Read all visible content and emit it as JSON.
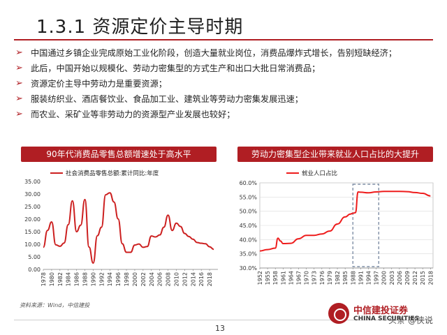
{
  "page": {
    "title": "1.3.1 资源定价主导时期",
    "bullets": [
      "中国通过乡镇企业完成原始工业化阶段，创造大量就业岗位，消费品爆炸式增长，告别短缺经济；",
      "此后，中国开始以规模化、劳动力密集型的方式生产和出口大批日常消费品；",
      "资源定价主导中劳动力是重要资源；",
      "服装纺织业、酒店餐饮业、食品加工业、建筑业等劳动力密集发展迅速；",
      "而农业、采矿业等非劳动力的资源型产业发展也较好；"
    ],
    "bullet_icon": "arrow-right-icon",
    "accent_color": "#b01e23",
    "source": "资料来源：Wind，中信建投",
    "page_number": "13",
    "logo": {
      "cn": "中信建投证券",
      "en": "CHINA SECURITIES",
      "watermark": "头条 @侠说"
    }
  },
  "chart_data": [
    {
      "type": "line",
      "title": "90年代消费品零售总额增速处于高水平",
      "series": [
        {
          "name": "社会消费品零售总额:累计同比:年度",
          "color": "#cc1f1f",
          "x": [
            1978,
            1979,
            1980,
            1981,
            1982,
            1983,
            1984,
            1985,
            1986,
            1987,
            1988,
            1989,
            1990,
            1991,
            1992,
            1993,
            1994,
            1995,
            1996,
            1997,
            1998,
            1999,
            2000,
            2001,
            2002,
            2003,
            2004,
            2005,
            2006,
            2007,
            2008,
            2009,
            2010,
            2011,
            2012,
            2013,
            2014,
            2015,
            2016,
            2017,
            2018,
            2019
          ],
          "values": [
            8.8,
            15.5,
            18.9,
            9.8,
            9.2,
            10.5,
            17.8,
            27.3,
            15.0,
            17.6,
            27.8,
            8.9,
            2.5,
            13.4,
            16.8,
            29.7,
            30.5,
            26.8,
            20.1,
            10.2,
            6.8,
            6.8,
            9.7,
            10.1,
            8.8,
            9.1,
            13.3,
            12.9,
            13.7,
            16.8,
            21.6,
            15.5,
            18.4,
            17.1,
            14.3,
            13.1,
            12.0,
            10.7,
            10.4,
            10.2,
            9.0,
            8.0
          ]
        }
      ],
      "xticks": [
        1978,
        1980,
        1982,
        1984,
        1986,
        1988,
        1990,
        1992,
        1994,
        1996,
        1998,
        2000,
        2002,
        2004,
        2006,
        2008,
        2010,
        2012,
        2014,
        2016,
        2018
      ],
      "yticks": [
        "0.00",
        "5.00",
        "10.00",
        "15.00",
        "20.00",
        "25.00",
        "30.00",
        "35.00"
      ],
      "ylim": [
        0,
        35
      ],
      "grid": false,
      "legend": "top"
    },
    {
      "type": "line",
      "title": "劳动力密集型企业带来就业人口占比的大提升",
      "series": [
        {
          "name": "就业人口占比",
          "color": "#ee1c1c",
          "x": [
            1952,
            1955,
            1958,
            1959,
            1960,
            1961,
            1964,
            1967,
            1970,
            1973,
            1976,
            1979,
            1982,
            1985,
            1987,
            1988,
            1989,
            1990,
            1991,
            1994,
            1997,
            2000,
            2003,
            2006,
            2009,
            2012,
            2015,
            2018
          ],
          "values": [
            36.0,
            36.5,
            37.0,
            40.5,
            39.5,
            38.6,
            38.7,
            40.3,
            41.5,
            41.5,
            42.0,
            43.0,
            45.5,
            48.0,
            49.0,
            49.3,
            49.5,
            56.8,
            56.7,
            56.5,
            56.8,
            57.0,
            57.0,
            57.0,
            56.9,
            56.6,
            56.3,
            55.4
          ]
        }
      ],
      "xticks": [
        1952,
        1955,
        1958,
        1961,
        1964,
        1967,
        1970,
        1973,
        1976,
        1979,
        1982,
        1985,
        1988,
        1991,
        1994,
        1997,
        2000,
        2003,
        2006,
        2009,
        2012,
        2015,
        2018
      ],
      "yticks": [
        "30.0%",
        "35.0%",
        "40.0%",
        "45.0%",
        "50.0%",
        "55.0%",
        "60.0%"
      ],
      "ylim": [
        30,
        60
      ],
      "highlight_range": [
        1988,
        1998
      ],
      "highlight_style": "dashed",
      "grid": true,
      "legend": "top"
    }
  ]
}
